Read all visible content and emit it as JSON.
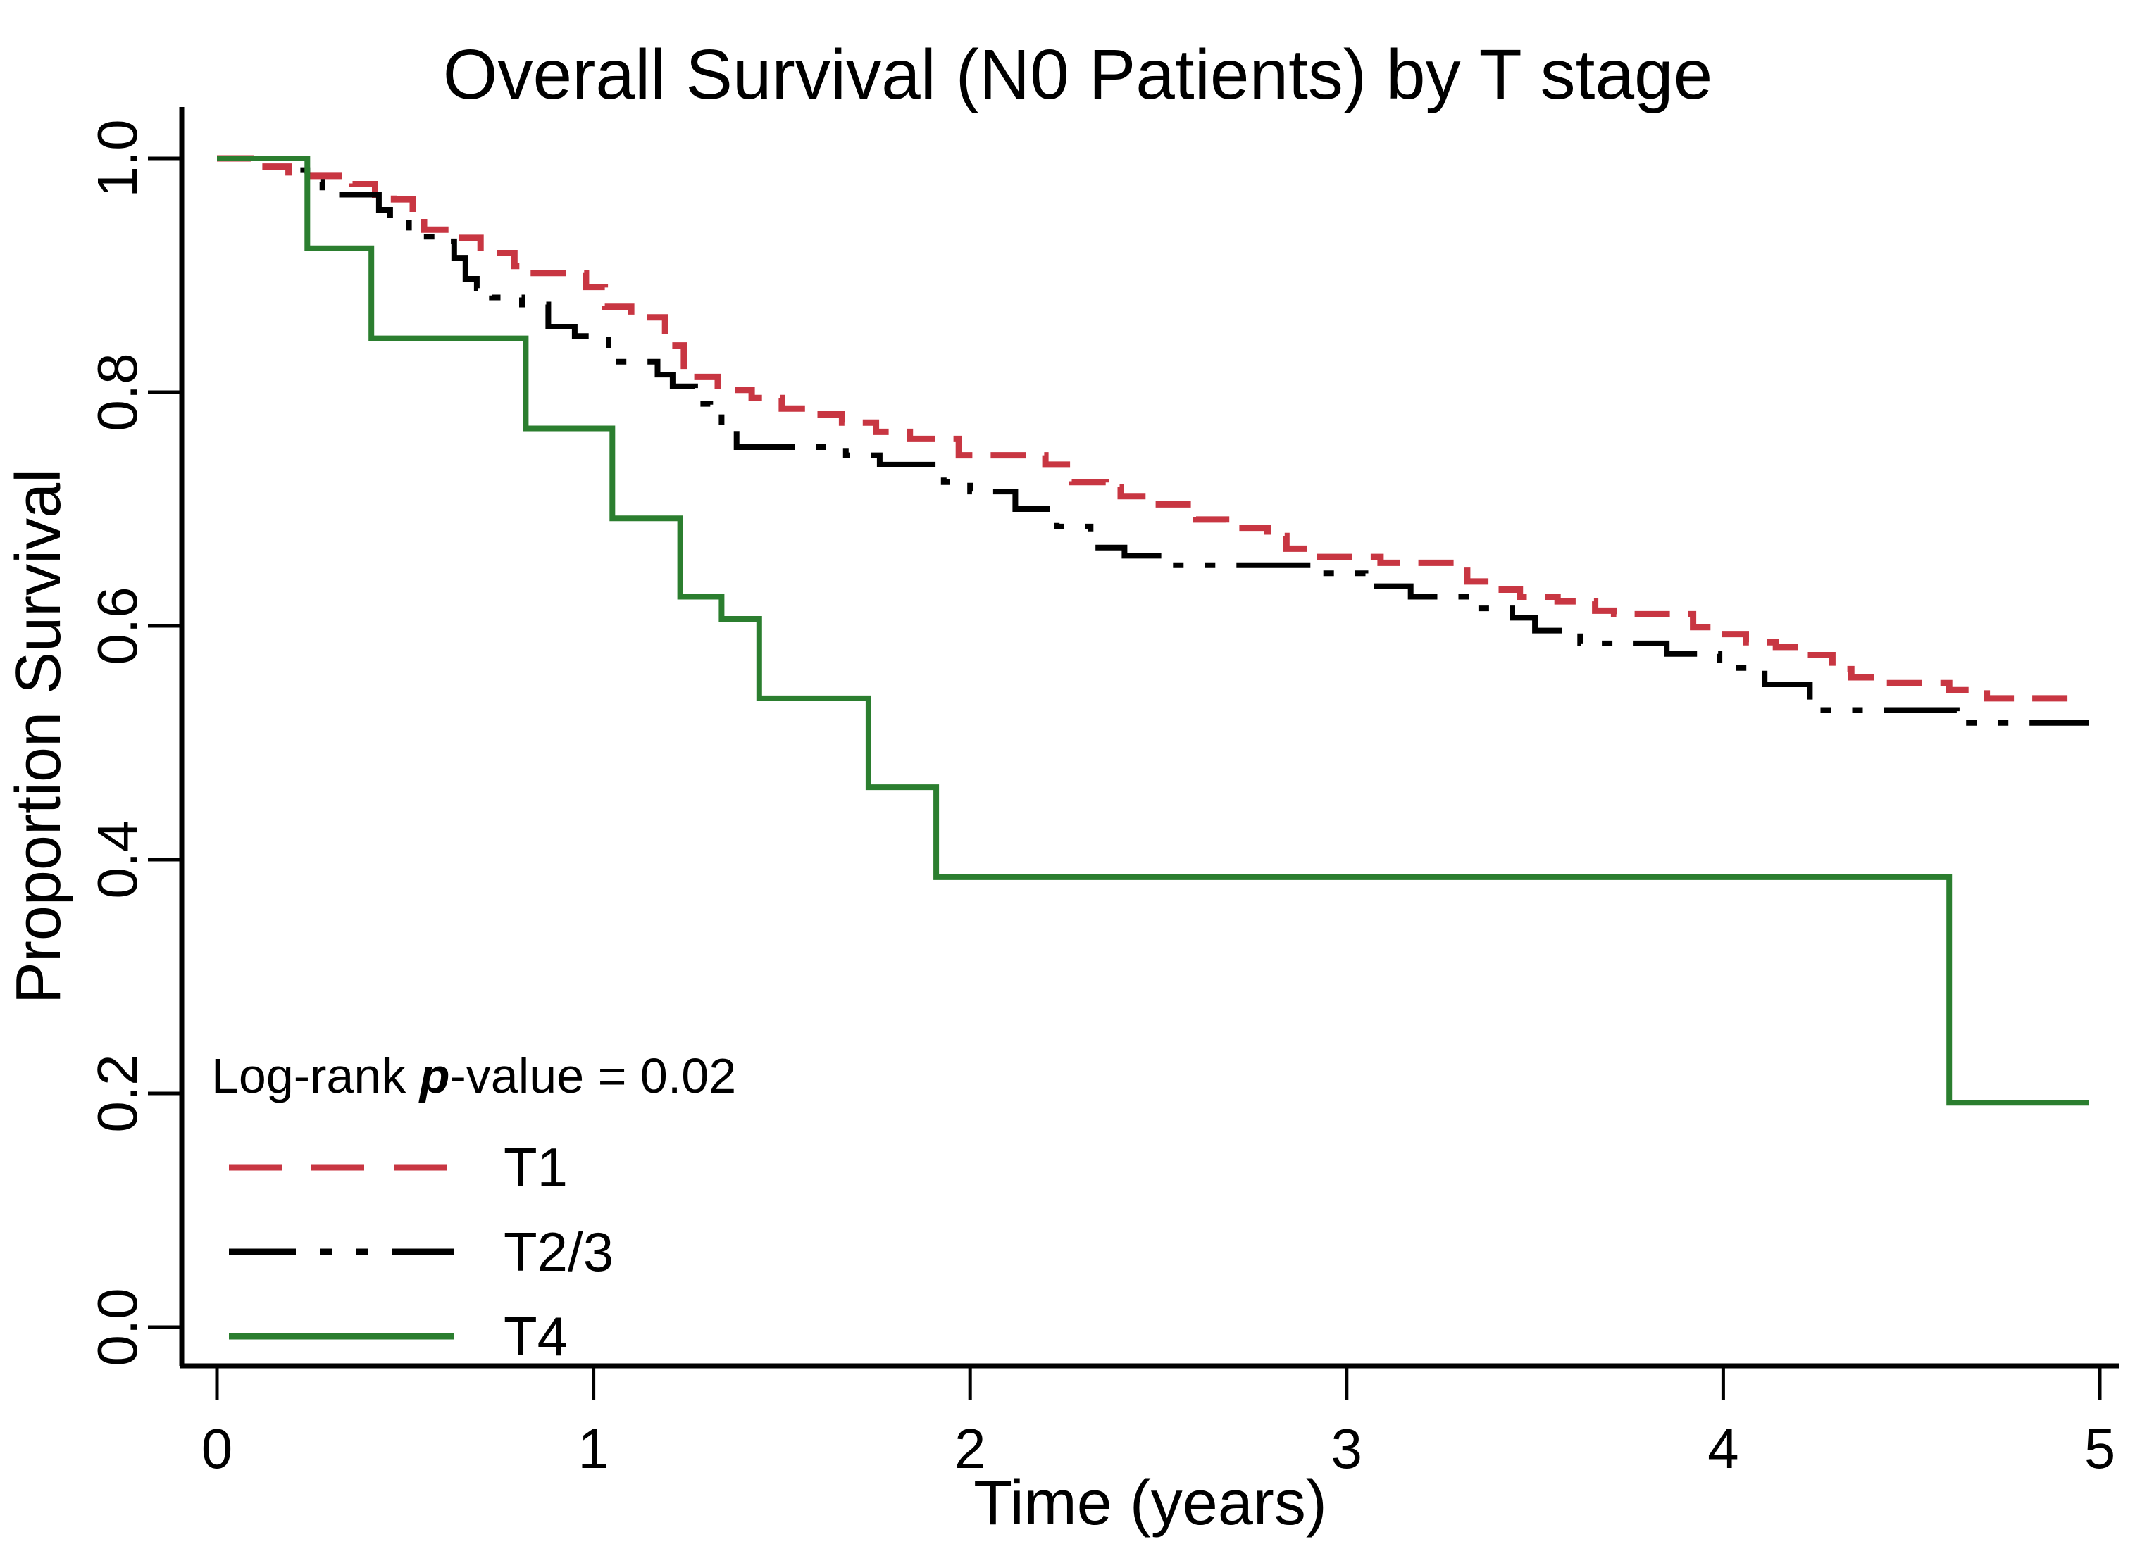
{
  "title": "Overall Survival (N0 Patients) by T stage",
  "chart_data": {
    "type": "line",
    "subtype": "kaplan-meier-step-curves",
    "title": "Overall Survival (N0 Patients) by T stage",
    "xlabel": "Time (years)",
    "ylabel": "Proportion Survival",
    "xlim": [
      0,
      5
    ],
    "ylim": [
      0.0,
      1.0
    ],
    "x_ticks": [
      0,
      1,
      2,
      3,
      4,
      5
    ],
    "y_ticks": [
      "0.0",
      "0.2",
      "0.4",
      "0.6",
      "0.8",
      "1.0"
    ],
    "grid": false,
    "legend_position": "inside-bottom-left",
    "annotation": {
      "prefix": "Log-rank ",
      "p": "p",
      "suffix": "-value = 0.02"
    },
    "series": [
      {
        "name": "T1",
        "color": "#c83642",
        "line_style": "long-dash",
        "points": [
          [
            0.0,
            1.0
          ],
          [
            0.09,
            0.993
          ],
          [
            0.19,
            0.985
          ],
          [
            0.36,
            0.978
          ],
          [
            0.42,
            0.969
          ],
          [
            0.47,
            0.965
          ],
          [
            0.52,
            0.953
          ],
          [
            0.55,
            0.939
          ],
          [
            0.63,
            0.932
          ],
          [
            0.7,
            0.919
          ],
          [
            0.79,
            0.908
          ],
          [
            0.83,
            0.902
          ],
          [
            0.98,
            0.89
          ],
          [
            1.03,
            0.873
          ],
          [
            1.1,
            0.864
          ],
          [
            1.19,
            0.84
          ],
          [
            1.24,
            0.813
          ],
          [
            1.33,
            0.802
          ],
          [
            1.42,
            0.795
          ],
          [
            1.5,
            0.786
          ],
          [
            1.58,
            0.781
          ],
          [
            1.66,
            0.774
          ],
          [
            1.75,
            0.766
          ],
          [
            1.84,
            0.76
          ],
          [
            1.97,
            0.746
          ],
          [
            2.2,
            0.738
          ],
          [
            2.27,
            0.723
          ],
          [
            2.36,
            0.719
          ],
          [
            2.4,
            0.711
          ],
          [
            2.48,
            0.704
          ],
          [
            2.6,
            0.691
          ],
          [
            2.68,
            0.684
          ],
          [
            2.79,
            0.677
          ],
          [
            2.84,
            0.666
          ],
          [
            2.9,
            0.659
          ],
          [
            3.09,
            0.654
          ],
          [
            3.32,
            0.638
          ],
          [
            3.38,
            0.631
          ],
          [
            3.46,
            0.625
          ],
          [
            3.56,
            0.621
          ],
          [
            3.66,
            0.613
          ],
          [
            3.71,
            0.61
          ],
          [
            3.92,
            0.599
          ],
          [
            3.99,
            0.593
          ],
          [
            4.06,
            0.586
          ],
          [
            4.14,
            0.582
          ],
          [
            4.2,
            0.575
          ],
          [
            4.29,
            0.563
          ],
          [
            4.34,
            0.556
          ],
          [
            4.42,
            0.551
          ],
          [
            4.6,
            0.545
          ],
          [
            4.7,
            0.538
          ],
          [
            4.96,
            0.538
          ]
        ]
      },
      {
        "name": "T2/3",
        "color": "#000000",
        "line_style": "dash-dot-dot",
        "points": [
          [
            0.0,
            1.0
          ],
          [
            0.21,
            0.99
          ],
          [
            0.24,
            0.98
          ],
          [
            0.28,
            0.969
          ],
          [
            0.43,
            0.956
          ],
          [
            0.46,
            0.945
          ],
          [
            0.51,
            0.933
          ],
          [
            0.57,
            0.929
          ],
          [
            0.63,
            0.915
          ],
          [
            0.66,
            0.897
          ],
          [
            0.69,
            0.889
          ],
          [
            0.73,
            0.881
          ],
          [
            0.81,
            0.875
          ],
          [
            0.88,
            0.856
          ],
          [
            0.95,
            0.848
          ],
          [
            1.04,
            0.826
          ],
          [
            1.17,
            0.815
          ],
          [
            1.21,
            0.805
          ],
          [
            1.27,
            0.79
          ],
          [
            1.31,
            0.783
          ],
          [
            1.34,
            0.768
          ],
          [
            1.38,
            0.753
          ],
          [
            1.67,
            0.746
          ],
          [
            1.76,
            0.738
          ],
          [
            1.93,
            0.723
          ],
          [
            2.0,
            0.715
          ],
          [
            2.12,
            0.7
          ],
          [
            2.23,
            0.685
          ],
          [
            2.32,
            0.667
          ],
          [
            2.41,
            0.66
          ],
          [
            2.51,
            0.652
          ],
          [
            2.91,
            0.645
          ],
          [
            3.05,
            0.634
          ],
          [
            3.17,
            0.625
          ],
          [
            3.34,
            0.615
          ],
          [
            3.44,
            0.607
          ],
          [
            3.5,
            0.596
          ],
          [
            3.62,
            0.585
          ],
          [
            3.85,
            0.576
          ],
          [
            3.99,
            0.564
          ],
          [
            4.11,
            0.55
          ],
          [
            4.23,
            0.528
          ],
          [
            4.62,
            0.517
          ],
          [
            4.97,
            0.517
          ]
        ]
      },
      {
        "name": "T4",
        "color": "#2b7e2f",
        "line_style": "solid",
        "points": [
          [
            0.0,
            1.0
          ],
          [
            0.24,
            0.923
          ],
          [
            0.41,
            0.846
          ],
          [
            0.82,
            0.769
          ],
          [
            1.05,
            0.692
          ],
          [
            1.23,
            0.625
          ],
          [
            1.34,
            0.606
          ],
          [
            1.44,
            0.538
          ],
          [
            1.73,
            0.462
          ],
          [
            1.91,
            0.385
          ],
          [
            4.6,
            0.192
          ],
          [
            4.97,
            0.192
          ]
        ]
      }
    ]
  }
}
